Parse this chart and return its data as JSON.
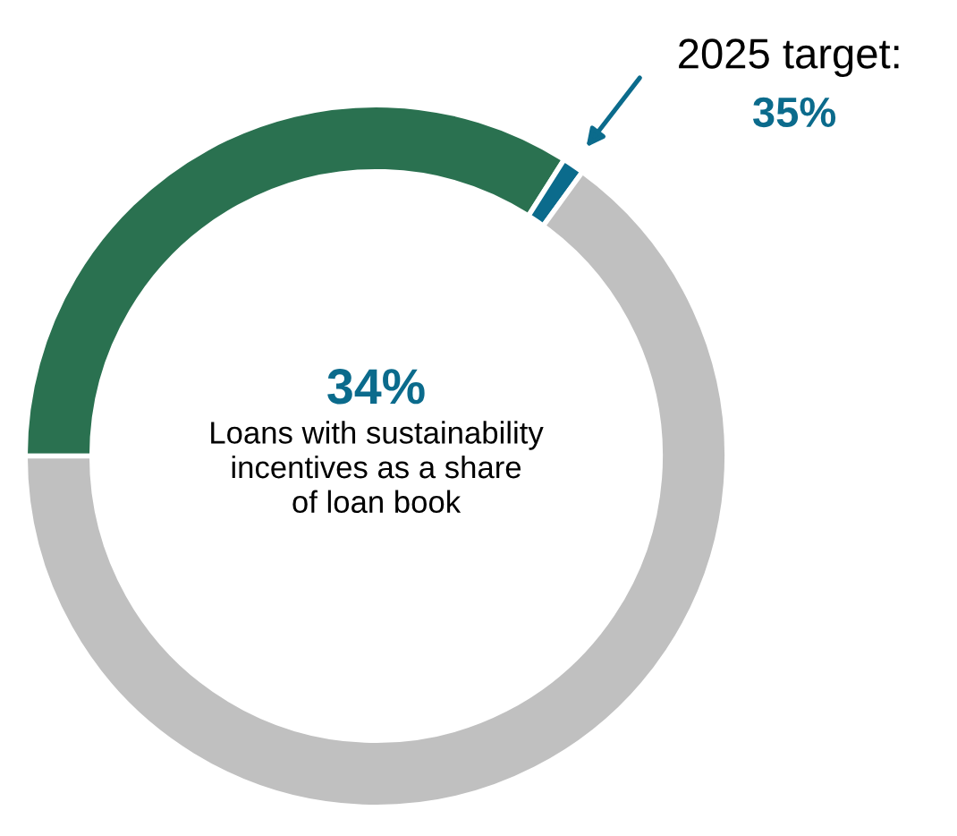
{
  "chart_data": {
    "type": "donut",
    "categories": [
      null,
      null,
      null
    ],
    "values": [
      34,
      1,
      65
    ],
    "colors": [
      "#2a7150",
      "#0b6b8c",
      "#c0c0c0"
    ],
    "annotations": [
      "34%",
      "Loans with sustainability\nincentives as a share\nof loan book",
      "2025 target:",
      "35%"
    ]
  }
}
